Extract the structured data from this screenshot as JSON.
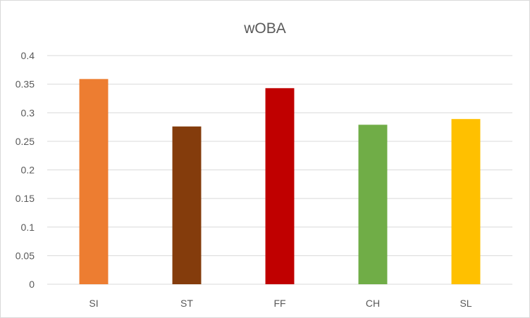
{
  "chart_data": {
    "type": "bar",
    "title": "wOBA",
    "xlabel": "",
    "ylabel": "",
    "categories": [
      "SI",
      "ST",
      "FF",
      "CH",
      "SL"
    ],
    "values": [
      0.359,
      0.276,
      0.343,
      0.279,
      0.289
    ],
    "colors": [
      "#ED7D31",
      "#843C0C",
      "#C00000",
      "#70AD47",
      "#FFC000"
    ],
    "ylim": [
      0,
      0.4
    ],
    "yticks": [
      0,
      0.05,
      0.1,
      0.15,
      0.2,
      0.25,
      0.3,
      0.35,
      0.4
    ],
    "ytick_labels": [
      "0",
      "0.05",
      "0.1",
      "0.15",
      "0.2",
      "0.25",
      "0.3",
      "0.35",
      "0.4"
    ],
    "grid": true,
    "legend": "none",
    "gridline_color": "#d9d9d9"
  }
}
